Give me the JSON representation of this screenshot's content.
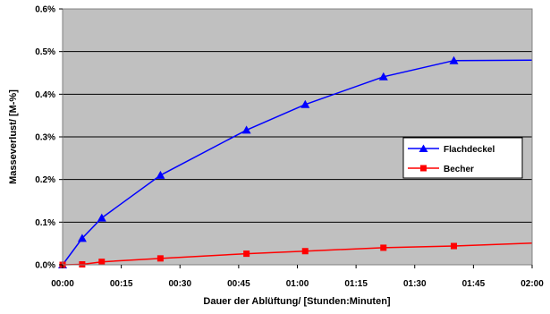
{
  "chart_data": {
    "type": "line",
    "title": "",
    "xlabel": "Dauer der Ablüftung/ [Stunden:Minuten]",
    "ylabel": "Masseverlust/ [M-%]",
    "x_unit": "hh:mm",
    "xlim": [
      "00:00",
      "02:00"
    ],
    "ylim": [
      0,
      0.6
    ],
    "x_ticks": [
      "00:00",
      "00:15",
      "00:30",
      "00:45",
      "01:00",
      "01:15",
      "01:30",
      "01:45",
      "02:00"
    ],
    "y_ticks": [
      "0.0%",
      "0.1%",
      "0.2%",
      "0.3%",
      "0.4%",
      "0.5%",
      "0.6%"
    ],
    "grid": true,
    "plot_background": "#c0c0c0",
    "legend": {
      "position": "right",
      "entries": [
        "Flachdeckel",
        "Becher"
      ]
    },
    "series": [
      {
        "name": "Flachdeckel",
        "color": "#0000ff",
        "marker": "triangle",
        "x": [
          "00:00",
          "00:05",
          "00:10",
          "00:25",
          "00:47",
          "01:02",
          "01:22",
          "01:40",
          "02:00"
        ],
        "y": [
          0.0,
          0.062,
          0.11,
          0.21,
          0.316,
          0.376,
          0.441,
          0.479,
          0.48
        ],
        "marker_visible": [
          true,
          true,
          true,
          true,
          true,
          true,
          true,
          true,
          false
        ]
      },
      {
        "name": "Becher",
        "color": "#ff0000",
        "marker": "square",
        "x": [
          "00:00",
          "00:05",
          "00:10",
          "00:25",
          "00:47",
          "01:02",
          "01:22",
          "01:40",
          "02:00"
        ],
        "y": [
          0.0,
          0.001,
          0.007,
          0.015,
          0.026,
          0.032,
          0.04,
          0.044,
          0.051
        ],
        "marker_visible": [
          true,
          true,
          true,
          true,
          true,
          true,
          true,
          true,
          false
        ]
      }
    ]
  }
}
